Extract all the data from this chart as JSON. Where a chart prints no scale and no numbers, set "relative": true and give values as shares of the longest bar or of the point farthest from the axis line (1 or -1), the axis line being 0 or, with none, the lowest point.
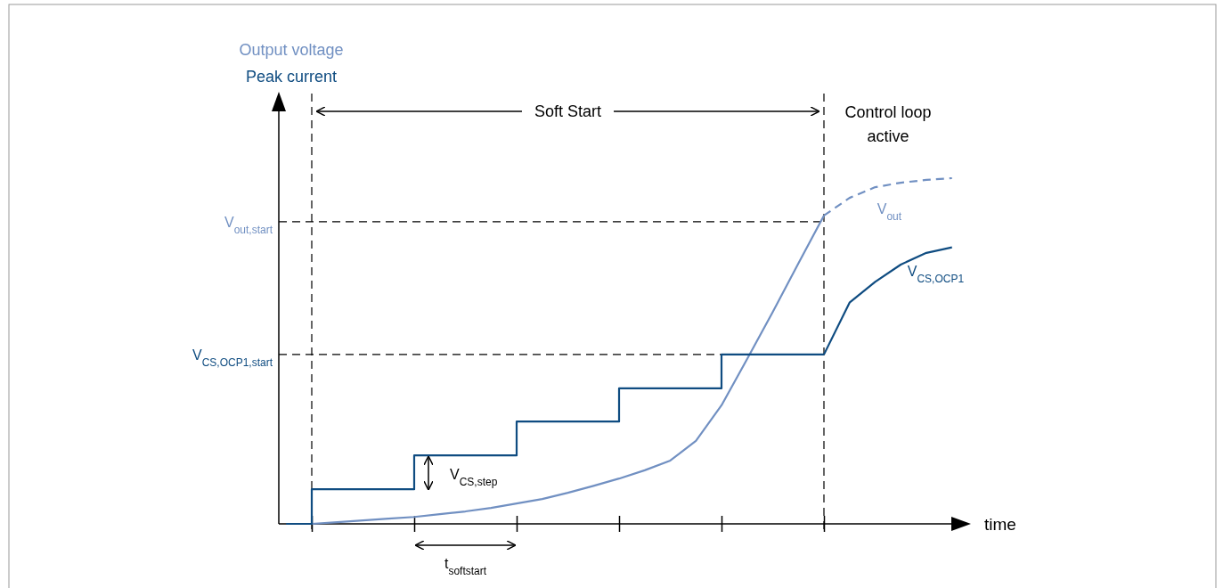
{
  "chart_data": {
    "type": "line",
    "relative": true,
    "xlabel": "time",
    "categories": [
      null,
      null,
      null,
      null,
      null,
      null,
      null,
      null,
      null,
      null,
      null,
      null,
      null,
      null,
      null,
      null,
      null,
      null,
      null,
      null,
      null,
      null,
      null,
      null,
      null,
      null,
      null
    ],
    "series": [
      {
        "color": "#7190c2",
        "line_style": "solid",
        "values": [
          null,
          0,
          0.005,
          0.01,
          0.015,
          0.02,
          0.028,
          0.036,
          0.046,
          0.059,
          0.072,
          0.09,
          0.11,
          0.131,
          0.155,
          0.183,
          0.24,
          0.343,
          0.477,
          0.613,
          0.753,
          0.892,
          null,
          null,
          null,
          null,
          null
        ]
      },
      {
        "name": "V$_{out}$",
        "color": "#7190c2",
        "line_style": "dashed",
        "values": [
          null,
          null,
          null,
          null,
          null,
          null,
          null,
          null,
          null,
          null,
          null,
          null,
          null,
          null,
          null,
          null,
          null,
          null,
          null,
          null,
          null,
          0.892,
          0.943,
          0.974,
          0.987,
          0.995,
          1.0
        ]
      },
      {
        "type": "step",
        "color": "#0f4c81",
        "line_style": "solid",
        "values": [
          0,
          0.1,
          0.1,
          0.1,
          0.1,
          0.198,
          0.198,
          0.198,
          0.198,
          0.296,
          0.296,
          0.296,
          0.296,
          0.392,
          0.392,
          0.392,
          0.392,
          0.49,
          0.49,
          0.49,
          0.49,
          0.49,
          null,
          null,
          null,
          null,
          null
        ]
      },
      {
        "name": "V$_{CS,OCP1}$",
        "color": "#0f4c81",
        "line_style": "solid",
        "values": [
          null,
          null,
          null,
          null,
          null,
          null,
          null,
          null,
          null,
          null,
          null,
          null,
          null,
          null,
          null,
          null,
          null,
          null,
          null,
          null,
          null,
          0.49,
          0.64,
          0.7,
          0.75,
          0.784,
          0.8
        ]
      }
    ],
    "ref_lines": [
      {
        "axis": "y",
        "value": 0.874,
        "label": "V$_{out,start}$",
        "line_style": "dashed"
      },
      {
        "axis": "y",
        "value": 0.49,
        "label": "V$_{CS,OCP1,start}$",
        "line_style": "dashed"
      }
    ],
    "annotations": [
      "Output voltage",
      "Peak current",
      "Soft Start",
      "Control loop active",
      "V$_{CS,step}$",
      "t$_{softstart}$"
    ]
  }
}
